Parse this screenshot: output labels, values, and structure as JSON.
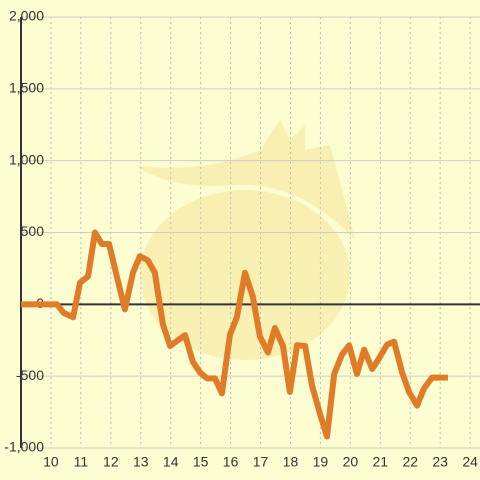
{
  "chart_data": {
    "type": "line",
    "x": [
      9,
      10.2,
      10.43,
      10.74,
      10.97,
      11.24,
      11.47,
      11.7,
      11.94,
      12.2,
      12.47,
      12.74,
      12.97,
      13.24,
      13.47,
      13.74,
      13.98,
      14.24,
      14.48,
      14.74,
      14.98,
      15.21,
      15.48,
      15.71,
      15.98,
      16.21,
      16.48,
      16.74,
      16.98,
      17.25,
      17.48,
      17.75,
      17.98,
      18.22,
      18.49,
      18.72,
      18.99,
      19.22,
      19.46,
      19.72,
      19.96,
      20.22,
      20.46,
      20.73,
      20.96,
      21.23,
      21.46,
      21.73,
      21.96,
      22.23,
      22.46,
      22.73,
      22.96,
      23.26
    ],
    "series": [
      {
        "color": "#e07b27",
        "values": [
          0,
          0,
          -60,
          -90,
          150,
          195,
          500,
          420,
          420,
          195,
          -35,
          220,
          335,
          305,
          220,
          -140,
          -290,
          -250,
          -215,
          -400,
          -475,
          -515,
          -515,
          -620,
          -210,
          -90,
          220,
          55,
          -225,
          -335,
          -165,
          -290,
          -610,
          -285,
          -290,
          -565,
          -765,
          -920,
          -485,
          -350,
          -285,
          -485,
          -315,
          -450,
          -375,
          -280,
          -260,
          -475,
          -610,
          -705,
          -585,
          -510,
          -510,
          -510
        ]
      }
    ],
    "xlim": [
      9,
      24.33
    ],
    "xticks": [
      10,
      11,
      12,
      13,
      14,
      15,
      16,
      17,
      18,
      19,
      20,
      21,
      22,
      23,
      24
    ],
    "ylim": [
      -1000,
      2000
    ],
    "yticks": [
      {
        "value": -1000,
        "label": "-1,000"
      },
      -500,
      0,
      500,
      {
        "value": 1000,
        "label": "1,000"
      },
      {
        "value": 1500,
        "label": "1,500"
      },
      {
        "value": 2000,
        "label": "2,000"
      }
    ],
    "grid": true
  }
}
